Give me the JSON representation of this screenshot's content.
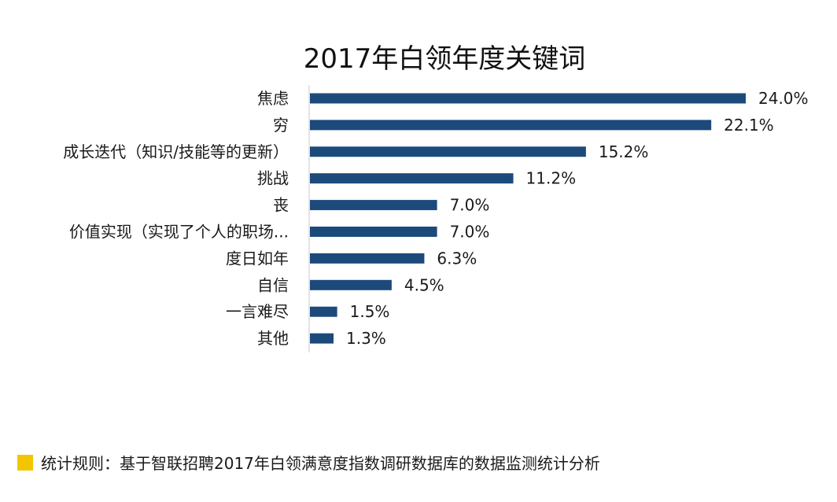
{
  "colors": {
    "bar": "#1c4a7a",
    "axis": "#c8c8c8",
    "footnote_swatch": "#f2c500"
  },
  "chart_data": {
    "type": "bar",
    "orientation": "horizontal",
    "title": "2017年白领年度关键词",
    "categories": [
      "焦虑",
      "穷",
      "成长迭代（知识/技能等的更新）",
      "挑战",
      "丧",
      "价值实现（实现了个人的职场...",
      "度日如年",
      "自信",
      "一言难尽",
      "其他"
    ],
    "values": [
      24.0,
      22.1,
      15.2,
      11.2,
      7.0,
      7.0,
      6.3,
      4.5,
      1.5,
      1.3
    ],
    "value_labels": [
      "24.0%",
      "22.1%",
      "15.2%",
      "11.2%",
      "7.0%",
      "7.0%",
      "6.3%",
      "4.5%",
      "1.5%",
      "1.3%"
    ],
    "unit": "%",
    "xlim": [
      0,
      24.0
    ],
    "grid": false,
    "legend": "none"
  },
  "footnote": {
    "text": "统计规则：基于智联招聘2017年白领满意度指数调研数据库的数据监测统计分析"
  }
}
